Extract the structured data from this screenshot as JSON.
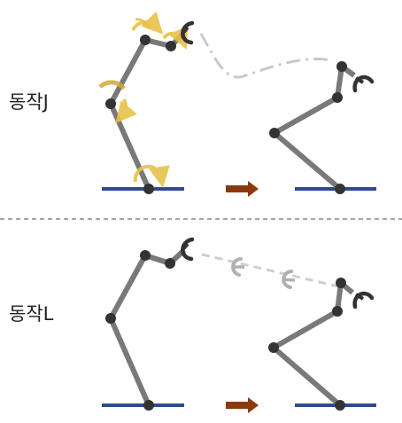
{
  "panel_j": {
    "label": "동작J"
  },
  "panel_l": {
    "label": "동작L"
  },
  "colors": {
    "arm": "#7a7878",
    "joint": "#333333",
    "base": "#2e4b8c",
    "arrow": "#8b3a0f",
    "rotation": "#e8c14a",
    "path": "#c9c9c9",
    "divider": "#888888"
  },
  "icons": [
    "rotation-arrow-icon",
    "gripper-icon",
    "transition-arrow-icon"
  ]
}
